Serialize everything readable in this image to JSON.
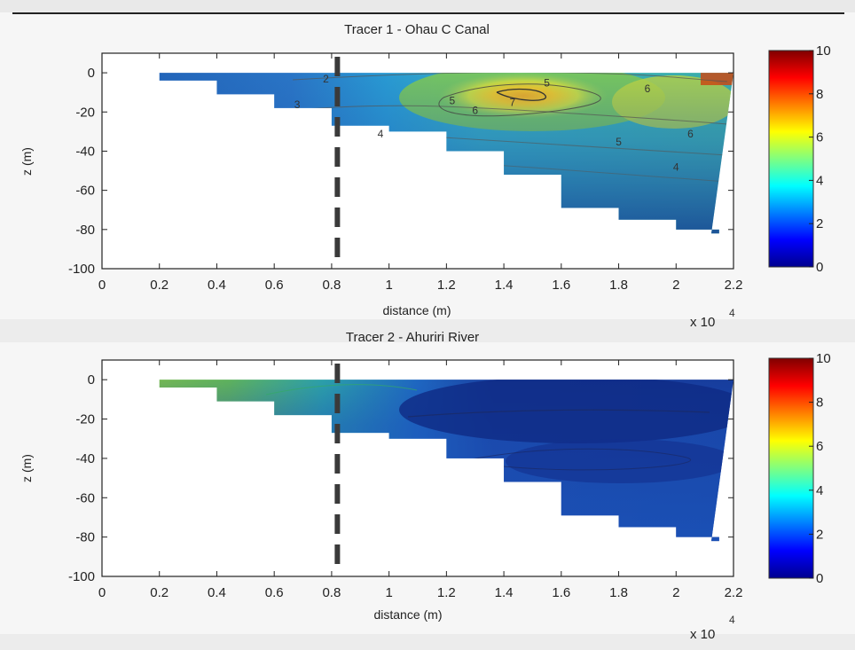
{
  "chart_data": [
    {
      "type": "heatmap",
      "title": "Tracer 1 - Ohau C Canal",
      "xlabel": "distance (m)",
      "ylabel": "z (m)",
      "x_multiplier_label": "x 10",
      "x_multiplier_exponent": "4",
      "xlim": [
        0,
        2.2
      ],
      "ylim": [
        -100,
        10
      ],
      "xticks": [
        "0",
        "0.2",
        "0.4",
        "0.6",
        "0.8",
        "1",
        "1.2",
        "1.4",
        "1.6",
        "1.8",
        "2",
        "2.2"
      ],
      "yticks": [
        "0",
        "-20",
        "-40",
        "-60",
        "-80",
        "-100"
      ],
      "colorbar": {
        "min": 0,
        "max": 10,
        "ticks": [
          "10",
          "8",
          "6",
          "4",
          "2",
          "0"
        ]
      },
      "section_line_x": 0.82,
      "bed_depth_profile": [
        {
          "x": 0.05,
          "z": 0
        },
        {
          "x": 0.2,
          "z": -4
        },
        {
          "x": 0.4,
          "z": -11
        },
        {
          "x": 0.6,
          "z": -18
        },
        {
          "x": 0.8,
          "z": -27
        },
        {
          "x": 1.0,
          "z": -30
        },
        {
          "x": 1.2,
          "z": -40
        },
        {
          "x": 1.4,
          "z": -52
        },
        {
          "x": 1.6,
          "z": -69
        },
        {
          "x": 1.8,
          "z": -75
        },
        {
          "x": 2.0,
          "z": -80
        },
        {
          "x": 2.15,
          "z": -82
        }
      ],
      "contour_labels": [
        {
          "text": "2",
          "x": 0.78,
          "z": -5
        },
        {
          "text": "3",
          "x": 0.68,
          "z": -18
        },
        {
          "text": "4",
          "x": 0.97,
          "z": -33
        },
        {
          "text": "5",
          "x": 1.22,
          "z": -16
        },
        {
          "text": "6",
          "x": 1.3,
          "z": -21
        },
        {
          "text": "5",
          "x": 1.55,
          "z": -7
        },
        {
          "text": "7",
          "x": 1.43,
          "z": -17
        },
        {
          "text": "6",
          "x": 1.9,
          "z": -10
        },
        {
          "text": "6",
          "x": 2.05,
          "z": -33
        },
        {
          "text": "5",
          "x": 1.8,
          "z": -37
        },
        {
          "text": "4",
          "x": 2.0,
          "z": -50
        }
      ]
    },
    {
      "type": "heatmap",
      "title": "Tracer 2 - Ahuriri River",
      "xlabel": "distance (m)",
      "ylabel": "z (m)",
      "x_multiplier_label": "x 10",
      "x_multiplier_exponent": "4",
      "xlim": [
        0,
        2.2
      ],
      "ylim": [
        -100,
        10
      ],
      "xticks": [
        "0",
        "0.2",
        "0.4",
        "0.6",
        "0.8",
        "1",
        "1.2",
        "1.4",
        "1.6",
        "1.8",
        "2",
        "2.2"
      ],
      "yticks": [
        "0",
        "-20",
        "-40",
        "-60",
        "-80",
        "-100"
      ],
      "colorbar": {
        "min": 0,
        "max": 10,
        "ticks": [
          "10",
          "8",
          "6",
          "4",
          "2",
          "0"
        ]
      },
      "section_line_x": 0.82,
      "bed_depth_profile": [
        {
          "x": 0.05,
          "z": 0
        },
        {
          "x": 0.2,
          "z": -4
        },
        {
          "x": 0.4,
          "z": -11
        },
        {
          "x": 0.6,
          "z": -18
        },
        {
          "x": 0.8,
          "z": -27
        },
        {
          "x": 1.0,
          "z": -30
        },
        {
          "x": 1.2,
          "z": -40
        },
        {
          "x": 1.4,
          "z": -52
        },
        {
          "x": 1.6,
          "z": -69
        },
        {
          "x": 1.8,
          "z": -75
        },
        {
          "x": 2.0,
          "z": -80
        },
        {
          "x": 2.15,
          "z": -82
        }
      ],
      "contour_labels": []
    }
  ]
}
